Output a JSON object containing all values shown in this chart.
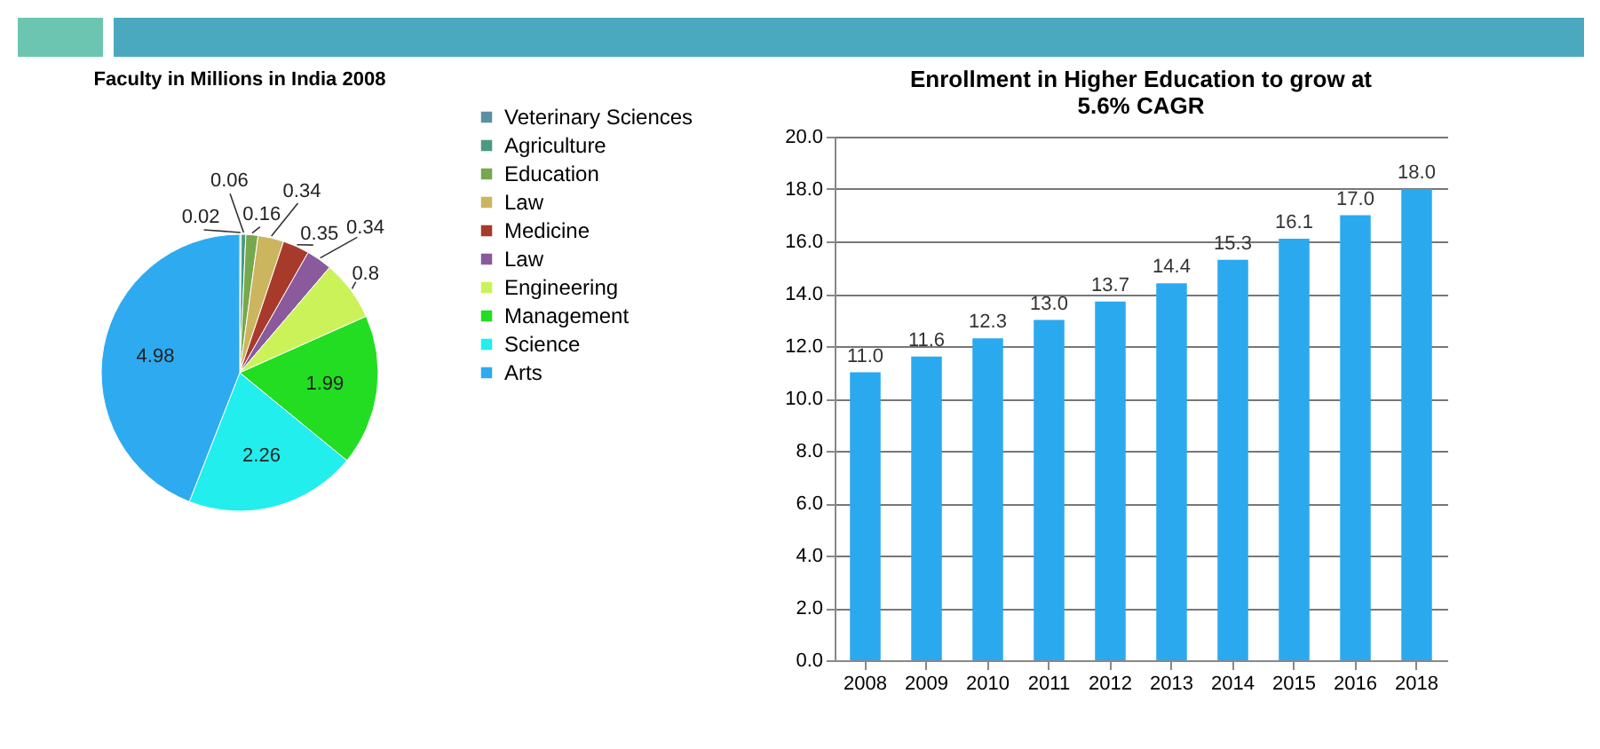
{
  "chart_data": [
    {
      "type": "pie",
      "title": "Faculty in Millions in India 2008",
      "categories": [
        "Veterinary Sciences",
        "Agriculture",
        "Education",
        "Law",
        "Medicine",
        "Law",
        "Engineering",
        "Management",
        "Science",
        "Arts"
      ],
      "values": [
        0.02,
        0.06,
        0.16,
        0.34,
        0.35,
        0.34,
        0.8,
        1.99,
        2.26,
        4.98
      ],
      "colors": [
        "#5b8fa6",
        "#4a9a82",
        "#76a84e",
        "#cbb65f",
        "#a83a2c",
        "#8a5a9c",
        "#ccf25a",
        "#22dd22",
        "#22eeee",
        "#2eaaf0"
      ],
      "data_labels": true,
      "legend": "right"
    },
    {
      "type": "bar",
      "title": "Enrollment in Higher Education to grow at 5.6% CAGR",
      "categories": [
        "2008",
        "2009",
        "2010",
        "2011",
        "2012",
        "2013",
        "2014",
        "2015",
        "2016",
        "2018"
      ],
      "values": [
        11.0,
        11.6,
        12.3,
        13.0,
        13.7,
        14.4,
        15.3,
        16.1,
        17.0,
        18.0
      ],
      "value_labels": [
        "11.0",
        "11.6",
        "12.3",
        "13.0",
        "13.7",
        "14.4",
        "15.3",
        "16.1",
        "17.0",
        "18.0"
      ],
      "color": "#2aa9ef",
      "ylim": [
        0,
        20
      ],
      "yticks": [
        {
          "value": 0,
          "label": "0.0"
        },
        {
          "value": 2,
          "label": "2.0"
        },
        {
          "value": 4,
          "label": "4.0"
        },
        {
          "value": 6,
          "label": "6.0"
        },
        {
          "value": 8,
          "label": "8.0"
        },
        {
          "value": 10,
          "label": "10.0"
        },
        {
          "value": 12,
          "label": "12.0"
        },
        {
          "value": 14,
          "label": "14.0"
        },
        {
          "value": 16,
          "label": "16.0"
        },
        {
          "value": 18,
          "label": "18.0"
        },
        {
          "value": 20,
          "label": "20.0"
        }
      ],
      "grid": "y"
    }
  ]
}
